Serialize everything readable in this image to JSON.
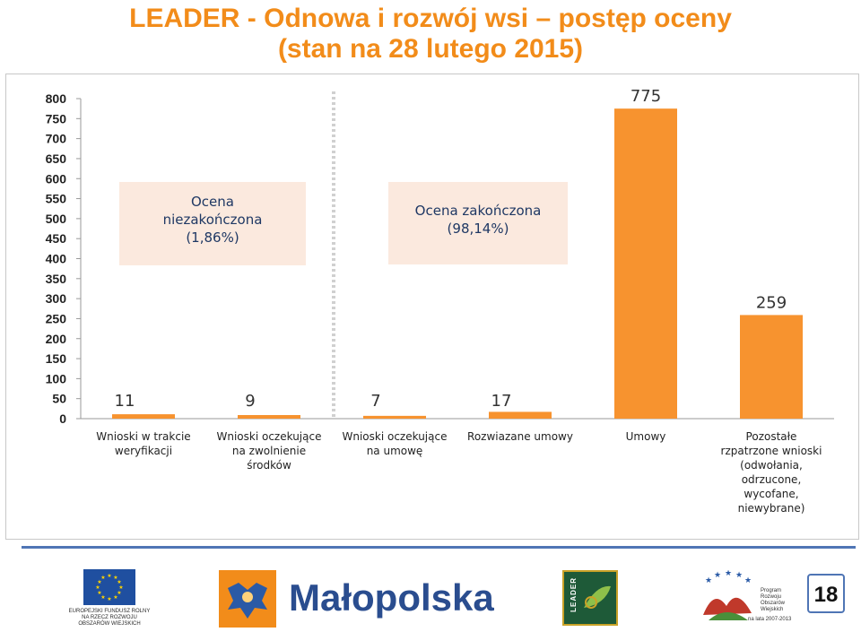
{
  "title_line1": "LEADER - Odnowa i rozwój wsi – postęp oceny",
  "title_line2": "(stan na 28 lutego 2015)",
  "groups": {
    "incomplete_line1": "Ocena",
    "incomplete_line2": "niezakończona",
    "incomplete_line3": "(1,86%)",
    "complete_line1": "Ocena zakończona",
    "complete_line2": "(98,14%)"
  },
  "chart_data": {
    "type": "bar",
    "categories": [
      [
        "Wnioski w trakcie",
        "weryfikacji"
      ],
      [
        "Wnioski oczekujące",
        "na zwolnienie",
        "środków"
      ],
      [
        "Wnioski oczekujące",
        "na umowę"
      ],
      [
        "Rozwiazane umowy"
      ],
      [
        "Umowy"
      ],
      [
        "Pozostałe",
        "rzpatrzone wnioski",
        "(odwołania,",
        "odrzucone,",
        "wycofane,",
        "niewybrane)"
      ]
    ],
    "values": [
      11,
      9,
      7,
      17,
      775,
      259
    ],
    "data_labels": [
      "11",
      "9",
      "7",
      "17",
      "775",
      "259"
    ],
    "ylim": [
      0,
      800
    ],
    "yticks": [
      "0",
      "50",
      "100",
      "150",
      "200",
      "250",
      "300",
      "350",
      "400",
      "450",
      "500",
      "550",
      "600",
      "650",
      "700",
      "750",
      "800"
    ],
    "bar_color": "#f7932f",
    "divider_after_category": 2
  },
  "footer": {
    "eu_line1": "EUROPEJSKI FUNDUSZ ROLNY",
    "eu_line2": "NA RZECZ ROZWOJU",
    "eu_line3": "OBSZARÓW WIEJSKICH",
    "region": "Małopolska",
    "leader": "LEADER",
    "prow_line1": "Program",
    "prow_line2": "Rozwoju",
    "prow_line3": "Obszarów",
    "prow_line4": "Wiejskich",
    "prow_line5": "na lata 2007-2013",
    "page": "18"
  },
  "colors": {
    "title": "#f28c1a",
    "bar": "#f7932f",
    "box_fill": "#fbe9de",
    "box_text": "#1f3864",
    "footer_line": "#4f75b5"
  }
}
